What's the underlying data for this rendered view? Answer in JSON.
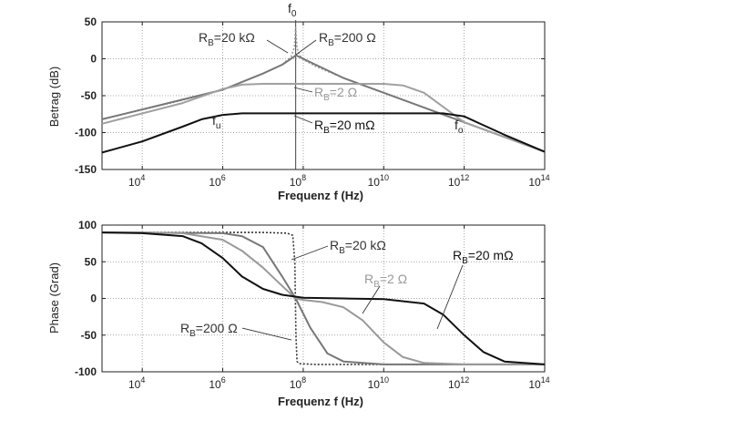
{
  "chart_data": [
    {
      "type": "line",
      "id": "magnitude",
      "xlabel": "Frequenz  f  (Hz)",
      "ylabel": "Betrag (dB)",
      "xscale": "log",
      "xlim": [
        1000,
        100000000000000
      ],
      "ylim": [
        -150,
        50
      ],
      "xticks": [
        {
          "value": 10000,
          "base": "10",
          "exp": "4"
        },
        {
          "value": 1000000,
          "base": "10",
          "exp": "6"
        },
        {
          "value": 100000000,
          "base": "10",
          "exp": "8"
        },
        {
          "value": 10000000000,
          "base": "10",
          "exp": "10"
        },
        {
          "value": 1000000000000,
          "base": "10",
          "exp": "12"
        },
        {
          "value": 100000000000000,
          "base": "10",
          "exp": "14"
        }
      ],
      "yticks": [
        "-150",
        "-100",
        "-50",
        "0",
        "50"
      ],
      "grid": true,
      "series": [
        {
          "name": "RB=20 kΩ",
          "color": "#9a9a9a",
          "dash": "2,2",
          "x": [
            1000,
            100000,
            1000000,
            10000000,
            30000000,
            50000000,
            60000000,
            65000000,
            70000000,
            80000000,
            100000000,
            200000000,
            1000000000,
            10000000000,
            100000000000,
            1000000000000,
            100000000000000
          ],
          "y": [
            -82,
            -56,
            -42,
            -20,
            -8,
            3,
            15,
            42,
            15,
            5,
            -1,
            -10,
            -26,
            -46,
            -66,
            -86,
            -126
          ]
        },
        {
          "name": "RB=200 Ω",
          "color": "#777777",
          "x": [
            1000,
            1000000,
            10000000,
            30000000,
            60000000,
            65000000,
            100000000,
            1000000000,
            10000000000,
            1000000000000,
            100000000000000
          ],
          "y": [
            -82,
            -42,
            -20,
            -8,
            3,
            5,
            0,
            -26,
            -46,
            -86,
            -126
          ]
        },
        {
          "name": "RB=2 Ω",
          "color": "#a0a0a0",
          "x": [
            1000,
            100000,
            1000000,
            3000000,
            10000000,
            100000000,
            1000000000,
            10000000000,
            30000000000,
            100000000000,
            1000000000000,
            100000000000000
          ],
          "y": [
            -88,
            -60,
            -41,
            -35,
            -34,
            -34,
            -34,
            -34,
            -36,
            -46,
            -86,
            -126
          ]
        },
        {
          "name": "RB=20 mΩ",
          "color": "#111111",
          "x": [
            1000,
            10000,
            100000,
            300000,
            1000000,
            3000000,
            10000000,
            100000000,
            10000000000,
            300000000000,
            1000000000000,
            3000000000000,
            10000000000000,
            100000000000000
          ],
          "y": [
            -127,
            -112,
            -92,
            -82,
            -76,
            -74,
            -74,
            -74,
            -74,
            -74,
            -78,
            -90,
            -103,
            -126
          ]
        }
      ],
      "annotations": [
        {
          "base": "R",
          "sub": "B",
          "rest": "=20 kΩ",
          "color": "#333333"
        },
        {
          "base": "R",
          "sub": "B",
          "rest": "=200 Ω",
          "color": "#333333"
        },
        {
          "base": "R",
          "sub": "B",
          "rest": "=2 Ω",
          "color": "#999999"
        },
        {
          "base": "R",
          "sub": "B",
          "rest": "=20 mΩ",
          "color": "#111111"
        },
        {
          "base": "f",
          "sub": "0"
        },
        {
          "base": "f",
          "sub": "u"
        },
        {
          "base": "f",
          "sub": "o"
        }
      ]
    },
    {
      "type": "line",
      "id": "phase",
      "xlabel": "Frequenz  f  (Hz)",
      "ylabel": "Phase (Grad)",
      "xscale": "log",
      "xlim": [
        1000,
        100000000000000
      ],
      "ylim": [
        -100,
        100
      ],
      "xticks": [
        {
          "value": 10000,
          "base": "10",
          "exp": "4"
        },
        {
          "value": 1000000,
          "base": "10",
          "exp": "6"
        },
        {
          "value": 100000000,
          "base": "10",
          "exp": "8"
        },
        {
          "value": 10000000000,
          "base": "10",
          "exp": "10"
        },
        {
          "value": 1000000000000,
          "base": "10",
          "exp": "12"
        },
        {
          "value": 100000000000000,
          "base": "10",
          "exp": "14"
        }
      ],
      "yticks": [
        "-100",
        "-50",
        "0",
        "50",
        "100"
      ],
      "grid": true,
      "series": [
        {
          "name": "RB=20 kΩ",
          "color": "#333333",
          "dash": "2,2",
          "x": [
            1000,
            10000000,
            40000000,
            55000000,
            62000000,
            66000000,
            70000000,
            80000000,
            200000000,
            100000000000000
          ],
          "y": [
            90,
            90,
            89,
            86,
            50,
            -50,
            -86,
            -89,
            -90,
            -90
          ]
        },
        {
          "name": "RB=200 Ω",
          "color": "#777777",
          "x": [
            1000,
            1000000,
            3000000,
            10000000,
            30000000,
            65000000,
            150000000,
            400000000,
            1000000000,
            10000000000,
            100000000000000
          ],
          "y": [
            90,
            89,
            85,
            70,
            30,
            0,
            -40,
            -75,
            -86,
            -90,
            -90
          ]
        },
        {
          "name": "RB=2 Ω",
          "color": "#999999",
          "x": [
            1000,
            10000,
            100000,
            1000000,
            3000000,
            10000000,
            30000000,
            65000000,
            100000000,
            300000000,
            1000000000,
            3000000000,
            10000000000,
            30000000000,
            100000000000,
            1000000000000,
            100000000000000
          ],
          "y": [
            90,
            90,
            89,
            80,
            65,
            42,
            17,
            0,
            -2,
            -5,
            -12,
            -30,
            -60,
            -80,
            -88,
            -90,
            -90
          ]
        },
        {
          "name": "RB=20 mΩ",
          "color": "#111111",
          "x": [
            1000,
            10000,
            100000,
            300000,
            1000000,
            3000000,
            10000000,
            30000000,
            100000000,
            1000000000,
            10000000000,
            100000000000,
            300000000000,
            1000000000000,
            3000000000000,
            10000000000000,
            100000000000000
          ],
          "y": [
            90,
            89,
            85,
            75,
            55,
            30,
            13,
            5,
            1,
            0,
            -1,
            -7,
            -22,
            -50,
            -73,
            -86,
            -90
          ]
        }
      ],
      "annotations": [
        {
          "base": "R",
          "sub": "B",
          "rest": "=20 kΩ",
          "color": "#333333"
        },
        {
          "base": "R",
          "sub": "B",
          "rest": "=2 Ω",
          "color": "#999999"
        },
        {
          "base": "R",
          "sub": "B",
          "rest": "=20 mΩ",
          "color": "#111111"
        },
        {
          "base": "R",
          "sub": "B",
          "rest": "=200 Ω",
          "color": "#333333"
        }
      ]
    }
  ]
}
